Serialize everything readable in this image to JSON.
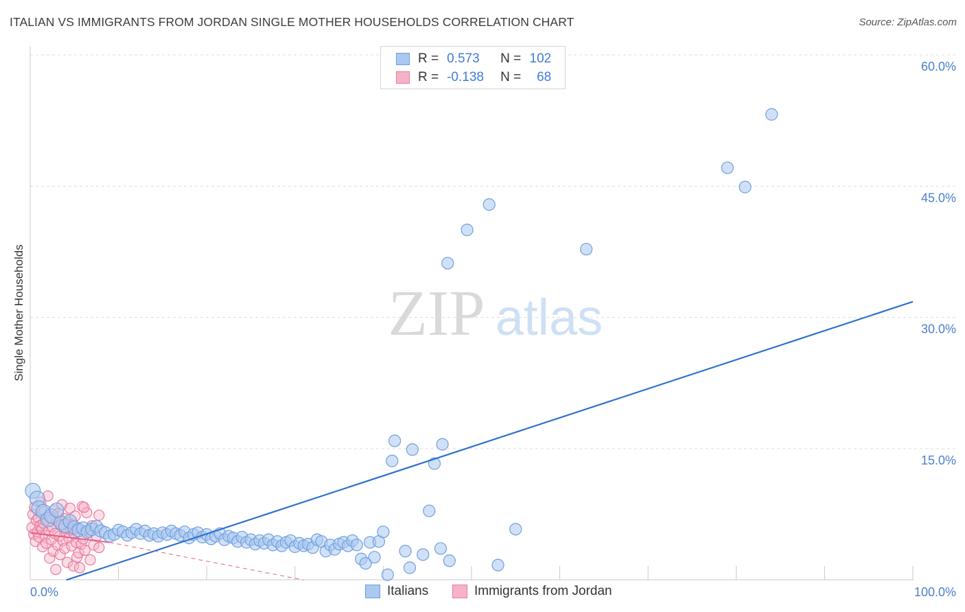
{
  "header": {
    "title": "ITALIAN VS IMMIGRANTS FROM JORDAN SINGLE MOTHER HOUSEHOLDS CORRELATION CHART",
    "source": "Source: ZipAtlas.com"
  },
  "watermark": {
    "zip": "ZIP",
    "atlas": "atlas"
  },
  "legend": {
    "rows": [
      {
        "r_label": "R =",
        "r_value": "0.573",
        "n_label": "N =",
        "n_value": "102"
      },
      {
        "r_label": "R =",
        "r_value": "-0.138",
        "n_label": "N =",
        "n_value": "68"
      }
    ]
  },
  "colors": {
    "italians_fill": "#aac8f0",
    "italians_stroke": "#6f9fdc",
    "italians_line": "#2f6fcf",
    "jordan_fill": "#f6b3c8",
    "jordan_stroke": "#e87a9e",
    "jordan_line": "#e0608a",
    "axis_text": "#4a7fcc",
    "grid": "#dcdcdc"
  },
  "chart_data": {
    "type": "scatter",
    "title": "ITALIAN VS IMMIGRANTS FROM JORDAN SINGLE MOTHER HOUSEHOLDS CORRELATION CHART",
    "xlabel": "",
    "ylabel": "Single Mother Households",
    "xlim": [
      0,
      100
    ],
    "ylim": [
      0,
      63
    ],
    "x_tick_labels": [
      "0.0%",
      "100.0%"
    ],
    "y_ticks": [
      15,
      30,
      45,
      60
    ],
    "y_tick_labels": [
      "15.0%",
      "30.0%",
      "45.0%",
      "60.0%"
    ],
    "grid": true,
    "legend_position": "bottom",
    "series": [
      {
        "name": "Italians",
        "points": [
          [
            0.3,
            10.2
          ],
          [
            0.8,
            9.3
          ],
          [
            1.0,
            8.2
          ],
          [
            1.5,
            7.8
          ],
          [
            2.0,
            6.9
          ],
          [
            2.4,
            7.3
          ],
          [
            3.0,
            8.0
          ],
          [
            3.5,
            6.5
          ],
          [
            4.0,
            6.2
          ],
          [
            4.5,
            6.7
          ],
          [
            5.0,
            6.0
          ],
          [
            5.5,
            5.7
          ],
          [
            6.0,
            5.9
          ],
          [
            6.5,
            5.5
          ],
          [
            7.0,
            5.8
          ],
          [
            7.5,
            6.1
          ],
          [
            8.0,
            5.6
          ],
          [
            8.5,
            5.4
          ],
          [
            9.0,
            5.0
          ],
          [
            9.5,
            5.2
          ],
          [
            10.0,
            5.7
          ],
          [
            10.5,
            5.5
          ],
          [
            11.0,
            5.1
          ],
          [
            11.5,
            5.4
          ],
          [
            12.0,
            5.8
          ],
          [
            12.5,
            5.3
          ],
          [
            13.0,
            5.6
          ],
          [
            13.5,
            5.1
          ],
          [
            14.0,
            5.3
          ],
          [
            14.5,
            5.0
          ],
          [
            15.0,
            5.4
          ],
          [
            15.5,
            5.2
          ],
          [
            16.0,
            5.6
          ],
          [
            16.5,
            5.3
          ],
          [
            17.0,
            5.1
          ],
          [
            17.5,
            5.5
          ],
          [
            18.0,
            4.8
          ],
          [
            18.5,
            5.2
          ],
          [
            19.0,
            5.4
          ],
          [
            19.5,
            4.9
          ],
          [
            20.0,
            5.2
          ],
          [
            20.5,
            4.7
          ],
          [
            21.0,
            5.0
          ],
          [
            21.5,
            5.3
          ],
          [
            22.0,
            4.6
          ],
          [
            22.5,
            5.0
          ],
          [
            23.0,
            4.8
          ],
          [
            23.5,
            4.4
          ],
          [
            24.0,
            4.9
          ],
          [
            24.5,
            4.3
          ],
          [
            25.0,
            4.6
          ],
          [
            25.5,
            4.1
          ],
          [
            26.0,
            4.5
          ],
          [
            26.5,
            4.2
          ],
          [
            27.0,
            4.6
          ],
          [
            27.5,
            4.0
          ],
          [
            28.0,
            4.4
          ],
          [
            28.5,
            3.9
          ],
          [
            29.0,
            4.3
          ],
          [
            29.5,
            4.5
          ],
          [
            30.0,
            3.8
          ],
          [
            30.5,
            4.2
          ],
          [
            31.0,
            3.9
          ],
          [
            31.5,
            4.1
          ],
          [
            32.0,
            3.7
          ],
          [
            32.5,
            4.6
          ],
          [
            33.0,
            4.4
          ],
          [
            33.5,
            3.3
          ],
          [
            34.0,
            4.0
          ],
          [
            34.5,
            3.5
          ],
          [
            35.0,
            4.1
          ],
          [
            35.5,
            4.3
          ],
          [
            36.0,
            3.9
          ],
          [
            36.5,
            4.5
          ],
          [
            37.0,
            4.0
          ],
          [
            37.5,
            2.4
          ],
          [
            38.0,
            1.9
          ],
          [
            38.5,
            4.3
          ],
          [
            39.0,
            2.6
          ],
          [
            39.5,
            4.4
          ],
          [
            40.0,
            5.5
          ],
          [
            40.5,
            0.6
          ],
          [
            41.0,
            13.6
          ],
          [
            41.3,
            15.9
          ],
          [
            42.5,
            3.3
          ],
          [
            43.0,
            1.4
          ],
          [
            43.3,
            14.9
          ],
          [
            44.5,
            2.9
          ],
          [
            45.2,
            7.9
          ],
          [
            45.8,
            13.3
          ],
          [
            46.7,
            15.5
          ],
          [
            46.5,
            3.6
          ],
          [
            47.5,
            2.2
          ],
          [
            47.3,
            36.2
          ],
          [
            49.5,
            40.0
          ],
          [
            52.0,
            42.9
          ],
          [
            53.0,
            1.7
          ],
          [
            55.0,
            5.8
          ],
          [
            63.0,
            37.8
          ],
          [
            79.0,
            47.1
          ],
          [
            81.0,
            44.9
          ],
          [
            84.0,
            53.2
          ]
        ]
      },
      {
        "name": "Immigrants from Jordan",
        "points": [
          [
            0.2,
            6.0
          ],
          [
            0.3,
            7.5
          ],
          [
            0.4,
            5.2
          ],
          [
            0.5,
            8.3
          ],
          [
            0.6,
            4.4
          ],
          [
            0.7,
            6.8
          ],
          [
            0.8,
            5.5
          ],
          [
            0.9,
            7.1
          ],
          [
            1.0,
            4.9
          ],
          [
            1.1,
            6.2
          ],
          [
            1.2,
            8.9
          ],
          [
            1.3,
            5.8
          ],
          [
            1.4,
            3.8
          ],
          [
            1.5,
            6.5
          ],
          [
            1.6,
            7.8
          ],
          [
            1.7,
            5.1
          ],
          [
            1.8,
            4.2
          ],
          [
            1.9,
            6.9
          ],
          [
            2.0,
            9.6
          ],
          [
            2.1,
            5.6
          ],
          [
            2.2,
            2.5
          ],
          [
            2.3,
            7.2
          ],
          [
            2.4,
            4.6
          ],
          [
            2.5,
            6.1
          ],
          [
            2.6,
            3.3
          ],
          [
            2.7,
            8.0
          ],
          [
            2.8,
            5.3
          ],
          [
            2.9,
            1.2
          ],
          [
            3.0,
            6.7
          ],
          [
            3.1,
            4.0
          ],
          [
            3.2,
            7.6
          ],
          [
            3.3,
            5.0
          ],
          [
            3.4,
            2.9
          ],
          [
            3.5,
            6.3
          ],
          [
            3.6,
            8.6
          ],
          [
            3.7,
            4.5
          ],
          [
            3.8,
            5.9
          ],
          [
            3.9,
            3.6
          ],
          [
            4.0,
            7.0
          ],
          [
            4.1,
            5.4
          ],
          [
            4.2,
            2.0
          ],
          [
            4.3,
            6.6
          ],
          [
            4.4,
            4.8
          ],
          [
            4.5,
            8.2
          ],
          [
            4.6,
            5.7
          ],
          [
            4.7,
            3.9
          ],
          [
            4.8,
            6.4
          ],
          [
            4.9,
            1.6
          ],
          [
            5.0,
            5.2
          ],
          [
            5.1,
            7.3
          ],
          [
            5.2,
            4.3
          ],
          [
            5.3,
            2.6
          ],
          [
            5.4,
            6.0
          ],
          [
            5.5,
            3.1
          ],
          [
            5.6,
            1.4
          ],
          [
            5.8,
            4.1
          ],
          [
            5.9,
            8.4
          ],
          [
            6.0,
            4.7
          ],
          [
            6.2,
            3.4
          ],
          [
            6.4,
            7.7
          ],
          [
            6.6,
            5.5
          ],
          [
            6.8,
            2.3
          ],
          [
            7.0,
            6.2
          ],
          [
            7.2,
            4.0
          ],
          [
            7.5,
            5.0
          ],
          [
            7.8,
            3.7
          ],
          [
            6.1,
            8.3
          ],
          [
            7.8,
            7.4
          ]
        ]
      }
    ],
    "trendlines": [
      {
        "series": "Italians",
        "x": [
          4.1,
          100
        ],
        "y": [
          0,
          31.8
        ]
      },
      {
        "series": "Immigrants from Jordan",
        "x": [
          0,
          9
        ],
        "y": [
          5.4,
          4.3
        ]
      },
      {
        "series": "Immigrants from Jordan",
        "x": [
          9,
          31
        ],
        "y": [
          4.3,
          0
        ]
      }
    ]
  },
  "bottom_legend": {
    "items": [
      {
        "label": "Italians"
      },
      {
        "label": "Immigrants from Jordan"
      }
    ]
  }
}
